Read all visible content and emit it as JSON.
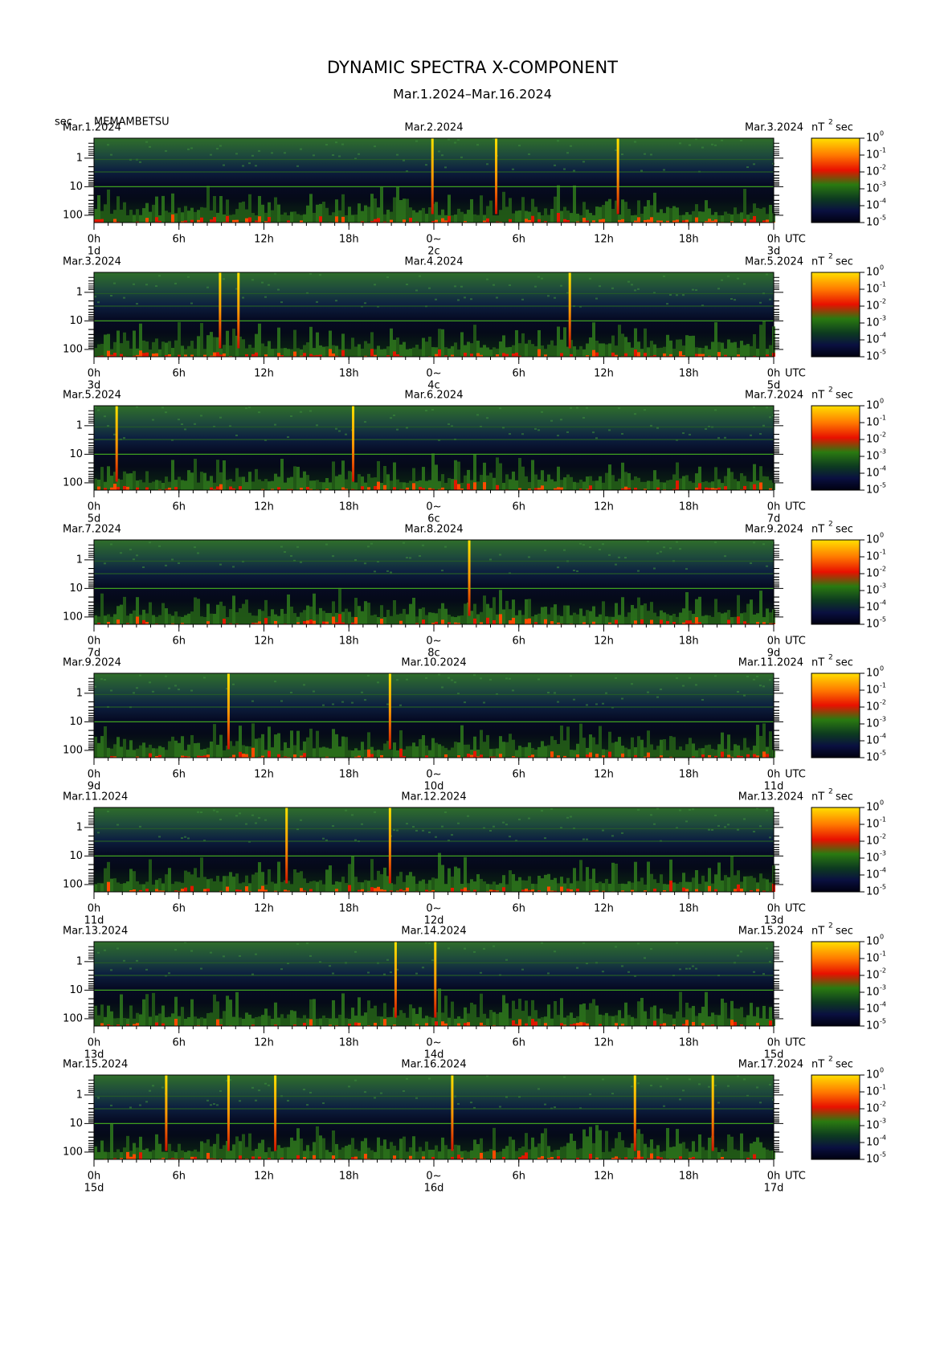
{
  "header": {
    "title": "DYNAMIC SPECTRA X-COMPONENT",
    "subtitle": "Mar.1.2024–Mar.16.2024",
    "unit": "sec",
    "station": "MEMAMBETSU"
  },
  "chart_data": [
    {
      "type": "spectrogram",
      "dates": [
        "Mar.1.2024",
        "Mar.2.2024",
        "Mar.3.2024"
      ],
      "units": [
        "nT",
        "2",
        "sec"
      ],
      "x_unit": "UTC",
      "log_y": true,
      "xlim": [
        0,
        48
      ],
      "ylim": [
        180,
        0.2
      ],
      "yticks": [
        1,
        10,
        100
      ],
      "xticks": [
        {
          "value": 0,
          "label": "0h"
        },
        {
          "value": 6,
          "label": "6h"
        },
        {
          "value": 12,
          "label": "12h"
        },
        {
          "value": 18,
          "label": "18h"
        },
        {
          "value": 24,
          "label": "0~"
        },
        {
          "value": 30,
          "label": "6h"
        },
        {
          "value": 36,
          "label": "12h"
        },
        {
          "value": 42,
          "label": "18h"
        },
        {
          "value": 48,
          "label": "0h"
        }
      ],
      "day_ticks": [
        {
          "value": 0,
          "label": "1d"
        },
        {
          "value": 24,
          "label": "2c"
        },
        {
          "value": 48,
          "label": "3d"
        }
      ],
      "spikes": [
        23.9,
        28.4,
        37.0
      ],
      "clim": [
        1e-05,
        1
      ],
      "cticks": [
        {
          "value": 1,
          "label": "10",
          "sup": "0"
        },
        {
          "value": 0.1,
          "label": "10",
          "sup": "-1"
        },
        {
          "value": 0.01,
          "label": "10",
          "sup": "-2"
        },
        {
          "value": 0.001,
          "label": "10",
          "sup": "-3"
        },
        {
          "value": 0.0001,
          "label": "10",
          "sup": "-4"
        },
        {
          "value": 1e-05,
          "label": "10",
          "sup": "-5"
        }
      ]
    },
    {
      "type": "spectrogram",
      "dates": [
        "Mar.3.2024",
        "Mar.4.2024",
        "Mar.5.2024"
      ],
      "units": [
        "nT",
        "2",
        "sec"
      ],
      "x_unit": "UTC",
      "log_y": true,
      "xlim": [
        0,
        48
      ],
      "ylim": [
        180,
        0.2
      ],
      "yticks": [
        1,
        10,
        100
      ],
      "xticks": [
        {
          "value": 0,
          "label": "0h"
        },
        {
          "value": 6,
          "label": "6h"
        },
        {
          "value": 12,
          "label": "12h"
        },
        {
          "value": 18,
          "label": "18h"
        },
        {
          "value": 24,
          "label": "0~"
        },
        {
          "value": 30,
          "label": "6h"
        },
        {
          "value": 36,
          "label": "12h"
        },
        {
          "value": 42,
          "label": "18h"
        },
        {
          "value": 48,
          "label": "0h"
        }
      ],
      "day_ticks": [
        {
          "value": 0,
          "label": "3d"
        },
        {
          "value": 24,
          "label": "4c"
        },
        {
          "value": 48,
          "label": "5d"
        }
      ],
      "spikes": [
        8.9,
        10.2,
        33.6
      ],
      "clim": [
        1e-05,
        1
      ],
      "cticks": [
        {
          "value": 1,
          "label": "10",
          "sup": "0"
        },
        {
          "value": 0.1,
          "label": "10",
          "sup": "-1"
        },
        {
          "value": 0.01,
          "label": "10",
          "sup": "-2"
        },
        {
          "value": 0.001,
          "label": "10",
          "sup": "-3"
        },
        {
          "value": 0.0001,
          "label": "10",
          "sup": "-4"
        },
        {
          "value": 1e-05,
          "label": "10",
          "sup": "-5"
        }
      ]
    },
    {
      "type": "spectrogram",
      "dates": [
        "Mar.5.2024",
        "Mar.6.2024",
        "Mar.7.2024"
      ],
      "units": [
        "nT",
        "2",
        "sec"
      ],
      "x_unit": "UTC",
      "log_y": true,
      "xlim": [
        0,
        48
      ],
      "ylim": [
        180,
        0.2
      ],
      "yticks": [
        1,
        10,
        100
      ],
      "xticks": [
        {
          "value": 0,
          "label": "0h"
        },
        {
          "value": 6,
          "label": "6h"
        },
        {
          "value": 12,
          "label": "12h"
        },
        {
          "value": 18,
          "label": "18h"
        },
        {
          "value": 24,
          "label": "0~"
        },
        {
          "value": 30,
          "label": "6h"
        },
        {
          "value": 36,
          "label": "12h"
        },
        {
          "value": 42,
          "label": "18h"
        },
        {
          "value": 48,
          "label": "0h"
        }
      ],
      "day_ticks": [
        {
          "value": 0,
          "label": "5d"
        },
        {
          "value": 24,
          "label": "6c"
        },
        {
          "value": 48,
          "label": "7d"
        }
      ],
      "spikes": [
        1.6,
        18.3
      ],
      "clim": [
        1e-05,
        1
      ],
      "cticks": [
        {
          "value": 1,
          "label": "10",
          "sup": "0"
        },
        {
          "value": 0.1,
          "label": "10",
          "sup": "-1"
        },
        {
          "value": 0.01,
          "label": "10",
          "sup": "-2"
        },
        {
          "value": 0.001,
          "label": "10",
          "sup": "-3"
        },
        {
          "value": 0.0001,
          "label": "10",
          "sup": "-4"
        },
        {
          "value": 1e-05,
          "label": "10",
          "sup": "-5"
        }
      ]
    },
    {
      "type": "spectrogram",
      "dates": [
        "Mar.7.2024",
        "Mar.8.2024",
        "Mar.9.2024"
      ],
      "units": [
        "nT",
        "2",
        "sec"
      ],
      "x_unit": "UTC",
      "log_y": true,
      "xlim": [
        0,
        48
      ],
      "ylim": [
        180,
        0.2
      ],
      "yticks": [
        1,
        10,
        100
      ],
      "xticks": [
        {
          "value": 0,
          "label": "0h"
        },
        {
          "value": 6,
          "label": "6h"
        },
        {
          "value": 12,
          "label": "12h"
        },
        {
          "value": 18,
          "label": "18h"
        },
        {
          "value": 24,
          "label": "0~"
        },
        {
          "value": 30,
          "label": "6h"
        },
        {
          "value": 36,
          "label": "12h"
        },
        {
          "value": 42,
          "label": "18h"
        },
        {
          "value": 48,
          "label": "0h"
        }
      ],
      "day_ticks": [
        {
          "value": 0,
          "label": "7d"
        },
        {
          "value": 24,
          "label": "8c"
        },
        {
          "value": 48,
          "label": "9d"
        }
      ],
      "spikes": [
        26.5
      ],
      "clim": [
        1e-05,
        1
      ],
      "cticks": [
        {
          "value": 1,
          "label": "10",
          "sup": "0"
        },
        {
          "value": 0.1,
          "label": "10",
          "sup": "-1"
        },
        {
          "value": 0.01,
          "label": "10",
          "sup": "-2"
        },
        {
          "value": 0.001,
          "label": "10",
          "sup": "-3"
        },
        {
          "value": 0.0001,
          "label": "10",
          "sup": "-4"
        },
        {
          "value": 1e-05,
          "label": "10",
          "sup": "-5"
        }
      ]
    },
    {
      "type": "spectrogram",
      "dates": [
        "Mar.9.2024",
        "Mar.10.2024",
        "Mar.11.2024"
      ],
      "units": [
        "nT",
        "2",
        "sec"
      ],
      "x_unit": "UTC",
      "log_y": true,
      "xlim": [
        0,
        48
      ],
      "ylim": [
        180,
        0.2
      ],
      "yticks": [
        1,
        10,
        100
      ],
      "xticks": [
        {
          "value": 0,
          "label": "0h"
        },
        {
          "value": 6,
          "label": "6h"
        },
        {
          "value": 12,
          "label": "12h"
        },
        {
          "value": 18,
          "label": "18h"
        },
        {
          "value": 24,
          "label": "0~"
        },
        {
          "value": 30,
          "label": "6h"
        },
        {
          "value": 36,
          "label": "12h"
        },
        {
          "value": 42,
          "label": "18h"
        },
        {
          "value": 48,
          "label": "0h"
        }
      ],
      "day_ticks": [
        {
          "value": 0,
          "label": "9d"
        },
        {
          "value": 24,
          "label": "10d"
        },
        {
          "value": 48,
          "label": "11d"
        }
      ],
      "spikes": [
        9.5,
        20.9
      ],
      "clim": [
        1e-05,
        1
      ],
      "cticks": [
        {
          "value": 1,
          "label": "10",
          "sup": "0"
        },
        {
          "value": 0.1,
          "label": "10",
          "sup": "-1"
        },
        {
          "value": 0.01,
          "label": "10",
          "sup": "-2"
        },
        {
          "value": 0.001,
          "label": "10",
          "sup": "-3"
        },
        {
          "value": 0.0001,
          "label": "10",
          "sup": "-4"
        },
        {
          "value": 1e-05,
          "label": "10",
          "sup": "-5"
        }
      ]
    },
    {
      "type": "spectrogram",
      "dates": [
        "Mar.11.2024",
        "Mar.12.2024",
        "Mar.13.2024"
      ],
      "units": [
        "nT",
        "2",
        "sec"
      ],
      "x_unit": "UTC",
      "log_y": true,
      "xlim": [
        0,
        48
      ],
      "ylim": [
        180,
        0.2
      ],
      "yticks": [
        1,
        10,
        100
      ],
      "xticks": [
        {
          "value": 0,
          "label": "0h"
        },
        {
          "value": 6,
          "label": "6h"
        },
        {
          "value": 12,
          "label": "12h"
        },
        {
          "value": 18,
          "label": "18h"
        },
        {
          "value": 24,
          "label": "0~"
        },
        {
          "value": 30,
          "label": "6h"
        },
        {
          "value": 36,
          "label": "12h"
        },
        {
          "value": 42,
          "label": "18h"
        },
        {
          "value": 48,
          "label": "0h"
        }
      ],
      "day_ticks": [
        {
          "value": 0,
          "label": "11d"
        },
        {
          "value": 24,
          "label": "12d"
        },
        {
          "value": 48,
          "label": "13d"
        }
      ],
      "spikes": [
        13.6,
        20.9
      ],
      "clim": [
        1e-05,
        1
      ],
      "cticks": [
        {
          "value": 1,
          "label": "10",
          "sup": "0"
        },
        {
          "value": 0.1,
          "label": "10",
          "sup": "-1"
        },
        {
          "value": 0.01,
          "label": "10",
          "sup": "-2"
        },
        {
          "value": 0.001,
          "label": "10",
          "sup": "-3"
        },
        {
          "value": 0.0001,
          "label": "10",
          "sup": "-4"
        },
        {
          "value": 1e-05,
          "label": "10",
          "sup": "-5"
        }
      ]
    },
    {
      "type": "spectrogram",
      "dates": [
        "Mar.13.2024",
        "Mar.14.2024",
        "Mar.15.2024"
      ],
      "units": [
        "nT",
        "2",
        "sec"
      ],
      "x_unit": "UTC",
      "log_y": true,
      "xlim": [
        0,
        48
      ],
      "ylim": [
        180,
        0.2
      ],
      "yticks": [
        1,
        10,
        100
      ],
      "xticks": [
        {
          "value": 0,
          "label": "0h"
        },
        {
          "value": 6,
          "label": "6h"
        },
        {
          "value": 12,
          "label": "12h"
        },
        {
          "value": 18,
          "label": "18h"
        },
        {
          "value": 24,
          "label": "0~"
        },
        {
          "value": 30,
          "label": "6h"
        },
        {
          "value": 36,
          "label": "12h"
        },
        {
          "value": 42,
          "label": "18h"
        },
        {
          "value": 48,
          "label": "0h"
        }
      ],
      "day_ticks": [
        {
          "value": 0,
          "label": "13d"
        },
        {
          "value": 24,
          "label": "14d"
        },
        {
          "value": 48,
          "label": "15d"
        }
      ],
      "spikes": [
        21.3,
        24.1
      ],
      "clim": [
        1e-05,
        1
      ],
      "cticks": [
        {
          "value": 1,
          "label": "10",
          "sup": "0"
        },
        {
          "value": 0.1,
          "label": "10",
          "sup": "-1"
        },
        {
          "value": 0.01,
          "label": "10",
          "sup": "-2"
        },
        {
          "value": 0.001,
          "label": "10",
          "sup": "-3"
        },
        {
          "value": 0.0001,
          "label": "10",
          "sup": "-4"
        },
        {
          "value": 1e-05,
          "label": "10",
          "sup": "-5"
        }
      ]
    },
    {
      "type": "spectrogram",
      "dates": [
        "Mar.15.2024",
        "Mar.16.2024",
        "Mar.17.2024"
      ],
      "units": [
        "nT",
        "2",
        "sec"
      ],
      "x_unit": "UTC",
      "log_y": true,
      "xlim": [
        0,
        48
      ],
      "ylim": [
        180,
        0.2
      ],
      "yticks": [
        1,
        10,
        100
      ],
      "xticks": [
        {
          "value": 0,
          "label": "0h"
        },
        {
          "value": 6,
          "label": "6h"
        },
        {
          "value": 12,
          "label": "12h"
        },
        {
          "value": 18,
          "label": "18h"
        },
        {
          "value": 24,
          "label": "0~"
        },
        {
          "value": 30,
          "label": "6h"
        },
        {
          "value": 36,
          "label": "12h"
        },
        {
          "value": 42,
          "label": "18h"
        },
        {
          "value": 48,
          "label": "0h"
        }
      ],
      "day_ticks": [
        {
          "value": 0,
          "label": "15d"
        },
        {
          "value": 24,
          "label": "16d"
        },
        {
          "value": 48,
          "label": "17d"
        }
      ],
      "spikes": [
        5.1,
        9.5,
        12.8,
        25.3,
        38.2,
        43.7
      ],
      "clim": [
        1e-05,
        1
      ],
      "cticks": [
        {
          "value": 1,
          "label": "10",
          "sup": "0"
        },
        {
          "value": 0.1,
          "label": "10",
          "sup": "-1"
        },
        {
          "value": 0.01,
          "label": "10",
          "sup": "-2"
        },
        {
          "value": 0.001,
          "label": "10",
          "sup": "-3"
        },
        {
          "value": 0.0001,
          "label": "10",
          "sup": "-4"
        },
        {
          "value": 1e-05,
          "label": "10",
          "sup": "-5"
        }
      ]
    }
  ]
}
